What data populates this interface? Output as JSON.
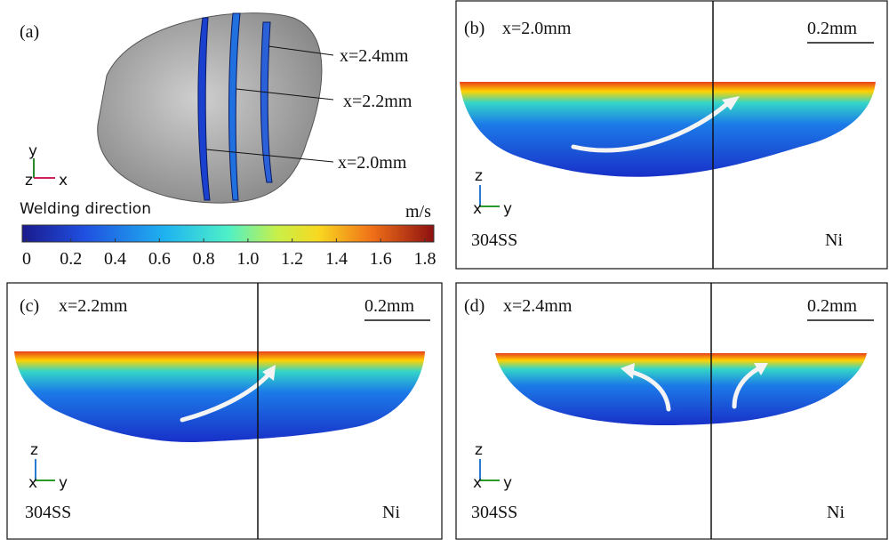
{
  "panels": [
    {
      "label": "(a)",
      "annotations": [
        "x=2.4mm",
        "x=2.2mm",
        "x=2.0mm"
      ],
      "axes": [
        "y",
        "z",
        "x"
      ],
      "caption": "Welding direction"
    },
    {
      "label": "(b)",
      "section": "x=2.0mm",
      "scale_bar": "0.2mm",
      "axes": [
        "z",
        "x",
        "y"
      ],
      "left": "304SS",
      "right": "Ni"
    },
    {
      "label": "(c)",
      "section": "x=2.2mm",
      "scale_bar": "0.2mm",
      "axes": [
        "z",
        "x",
        "y"
      ],
      "left": "304SS",
      "right": "Ni"
    },
    {
      "label": "(d)",
      "section": "x=2.4mm",
      "scale_bar": "0.2mm",
      "axes": [
        "z",
        "x",
        "y"
      ],
      "left": "304SS",
      "right": "Ni"
    }
  ],
  "colorbar": {
    "unit": "m/s",
    "lim": [
      0,
      1.8
    ],
    "ticks": [
      0,
      0.2,
      0.4,
      0.6,
      0.8,
      {
        "value": 1,
        "label": "1.0"
      },
      1.2,
      1.4,
      1.6,
      1.8
    ]
  }
}
